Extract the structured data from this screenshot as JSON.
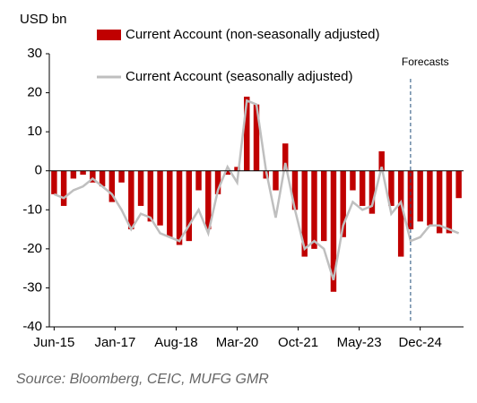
{
  "chart_data": {
    "type": "bar",
    "y_unit_label": "USD bn",
    "source": "Source: Bloomberg, CEIC, MUFG GMR",
    "annotation": {
      "text": "Forecasts",
      "x": 37
    },
    "categories": [
      null,
      null,
      null,
      null,
      null,
      null,
      null,
      null,
      null,
      null,
      null,
      null,
      null,
      null,
      null,
      null,
      null,
      null,
      null,
      null,
      null,
      null,
      null,
      null,
      null,
      null,
      null,
      null,
      null,
      null,
      null,
      null,
      null,
      null,
      null,
      null,
      null,
      null,
      null,
      null,
      null,
      null,
      null
    ],
    "series": [
      {
        "name": "Current Account (non-seasonally adjusted)",
        "type": "bar",
        "color": "#c00000",
        "values": [
          -6,
          -9,
          -2,
          -1,
          -3,
          -4,
          -8,
          -3,
          -15,
          -9,
          -13,
          -14,
          -17,
          -19,
          -18,
          -5,
          -15,
          -6,
          -1,
          1,
          19,
          17,
          -2,
          -5,
          7,
          -10,
          -22,
          -20,
          -18,
          -31,
          -17,
          -5,
          -9,
          -11,
          5,
          -9,
          -22,
          -15,
          -13,
          -14,
          -16,
          -16,
          -7
        ]
      },
      {
        "name": "Current Account (seasonally adjusted)",
        "type": "line",
        "color": "#bfbfbf",
        "values": [
          -6,
          -7,
          -5,
          -4,
          -2,
          -4,
          -6,
          -10,
          -15,
          -11,
          -12,
          -16,
          -17,
          -18,
          -14,
          -10,
          -16,
          -5,
          1,
          -3,
          18,
          17,
          0,
          -12,
          2,
          -10,
          -20,
          -18,
          -20,
          -28,
          -14,
          -8,
          -10,
          -9,
          1,
          -11,
          -8,
          -18,
          -17,
          -14,
          -14,
          -15,
          -16
        ]
      }
    ],
    "xticks": [
      {
        "value": 0,
        "label": "Jun-15"
      },
      {
        "value": 6.333,
        "label": "Jan-17"
      },
      {
        "value": 12.667,
        "label": "Aug-18"
      },
      {
        "value": 19,
        "label": "Mar-20"
      },
      {
        "value": 25.333,
        "label": "Oct-21"
      },
      {
        "value": 31.667,
        "label": "May-23"
      },
      {
        "value": 38,
        "label": "Dec-24"
      }
    ],
    "ylim": [
      -40,
      30
    ],
    "yticks": [
      -40,
      -30,
      -20,
      -10,
      0,
      10,
      20,
      30
    ],
    "grid": false
  }
}
